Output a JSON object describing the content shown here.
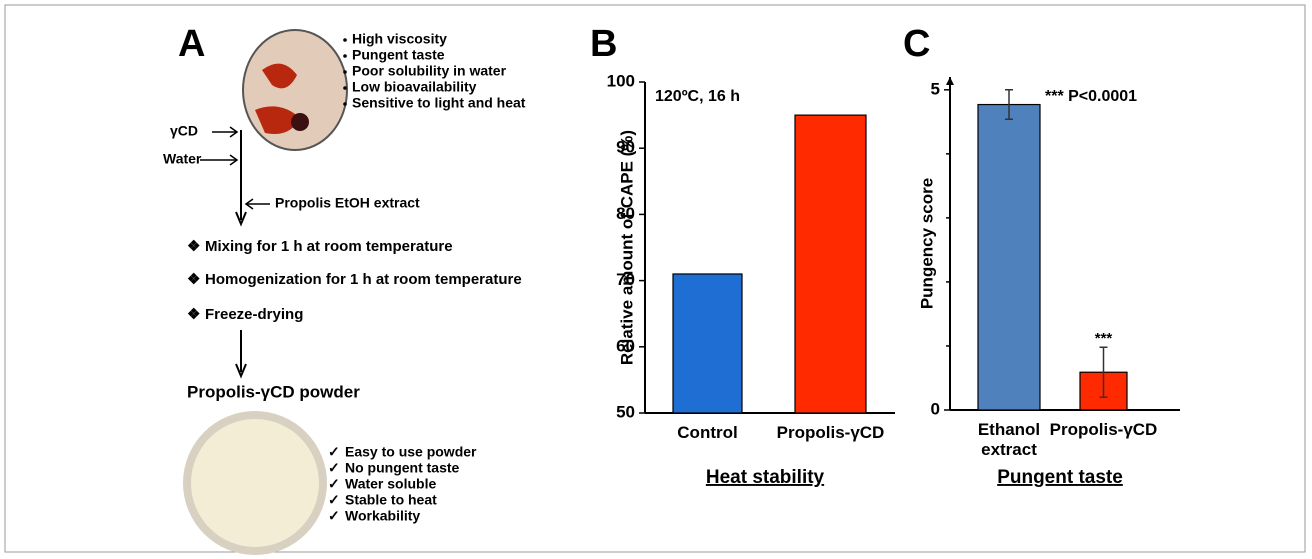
{
  "panel_a": {
    "label": "A",
    "problems": [
      "High viscosity",
      "Pungent taste",
      "Poor solubility in water",
      "Low bioavailability",
      "Sensitive to light and heat"
    ],
    "inputs": [
      "γCD",
      "Water"
    ],
    "extract": "Propolis EtOH extract",
    "steps": [
      "Mixing for 1 h at room temperature",
      "Homogenization for 1 h at room temperature",
      "Freeze-drying"
    ],
    "product": "Propolis-γCD powder",
    "benefits": [
      "Easy to use powder",
      "No pungent taste",
      "Water soluble",
      "Stable to heat",
      "Workability"
    ]
  },
  "chart_data": [
    {
      "type": "bar",
      "panel": "B",
      "title": "Heat stability",
      "ylabel": "Relative amount of CAPE (%)",
      "annotation": "120ºC, 16 h",
      "categories": [
        "Control",
        "Propolis-γCD"
      ],
      "values": [
        71,
        95
      ],
      "colors": [
        "#1f6ed4",
        "#ff2a00"
      ],
      "ylim": [
        50,
        100
      ],
      "yticks": [
        50,
        60,
        70,
        80,
        90,
        100
      ]
    },
    {
      "type": "bar",
      "panel": "C",
      "title": "Pungent taste",
      "ylabel": "Pungency score",
      "annotation": "*** P<0.0001",
      "categories": [
        "Ethanol extract",
        "Propolis-γCD"
      ],
      "values": [
        4.77,
        0.59
      ],
      "errors": [
        0.23,
        0.39
      ],
      "significance_labels": [
        null,
        "***"
      ],
      "colors": [
        "#4f81bd",
        "#ff2a00"
      ],
      "ylim": [
        0,
        5.2
      ],
      "yticks": [
        0,
        5
      ],
      "minor_yticks": [
        1,
        2,
        3,
        4
      ]
    }
  ]
}
